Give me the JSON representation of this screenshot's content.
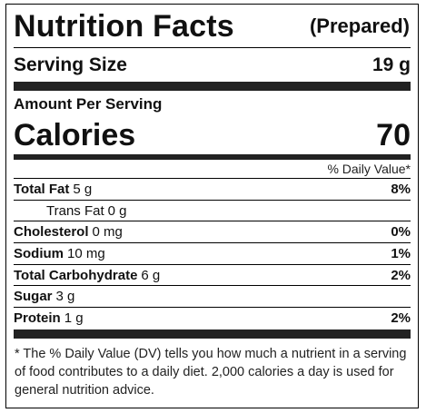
{
  "header": {
    "title": "Nutrition Facts",
    "qualifier": "(Prepared)"
  },
  "serving": {
    "label": "Serving Size",
    "value": "19 g"
  },
  "amount_per_serving": "Amount Per Serving",
  "calories": {
    "label": "Calories",
    "value": "70"
  },
  "daily_value_header": "% Daily Value*",
  "nutrients": [
    {
      "name": "Total Fat",
      "amount": "5 g",
      "dv": "8%",
      "indent": false,
      "bold": true
    },
    {
      "name": "Trans Fat",
      "amount": "0 g",
      "dv": "",
      "indent": true,
      "bold": false
    },
    {
      "name": "Cholesterol",
      "amount": "0 mg",
      "dv": "0%",
      "indent": false,
      "bold": true
    },
    {
      "name": "Sodium",
      "amount": "10 mg",
      "dv": "1%",
      "indent": false,
      "bold": true
    },
    {
      "name": "Total Carbohydrate",
      "amount": "6 g",
      "dv": "2%",
      "indent": false,
      "bold": true
    },
    {
      "name": "Sugar",
      "amount": "3 g",
      "dv": "",
      "indent": false,
      "bold": true
    },
    {
      "name": "Protein",
      "amount": "1 g",
      "dv": "2%",
      "indent": false,
      "bold": true
    }
  ],
  "footnote": "* The % Daily Value (DV) tells you how much a nutrient in a serving of food contributes to a daily diet. 2,000 calories a day is used for general nutrition advice."
}
